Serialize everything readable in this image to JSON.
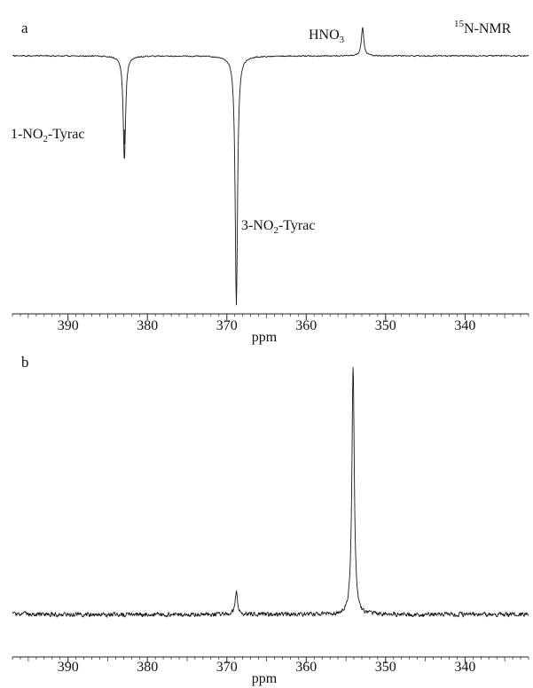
{
  "figure_label": "15N-NMR",
  "figure_label_parts": {
    "sup": "15",
    "main": "N-NMR"
  },
  "chart_data": [
    {
      "panel": "a",
      "type": "line",
      "xlabel": "ppm",
      "ylabel": "",
      "xlim": [
        397,
        332
      ],
      "x_reversed": true,
      "x_ticks": [
        390,
        380,
        370,
        360,
        350,
        340
      ],
      "grid": false,
      "baseline_noise": "low",
      "peaks": [
        {
          "x": 382.9,
          "height": -0.42,
          "label": "1-NO2-Tyrac"
        },
        {
          "x": 368.8,
          "height": -1.0,
          "label": "3-NO2-Tyrac"
        },
        {
          "x": 352.9,
          "height": 0.13,
          "label": "HNO3"
        }
      ],
      "annotations": [
        {
          "name": "label-1-no2-tyrac",
          "parts": [
            "1-NO",
            "2",
            "-Tyrac"
          ],
          "x": 382.9
        },
        {
          "name": "label-3-no2-tyrac",
          "parts": [
            "3-NO",
            "2",
            "-Tyrac"
          ],
          "x": 368.8
        },
        {
          "name": "label-hno3",
          "parts": [
            "HNO",
            "3",
            ""
          ],
          "x": 352.9
        }
      ]
    },
    {
      "panel": "b",
      "type": "line",
      "xlabel": "ppm",
      "ylabel": "",
      "xlim": [
        397,
        332
      ],
      "x_reversed": true,
      "x_ticks": [
        390,
        380,
        370,
        360,
        350,
        340
      ],
      "grid": false,
      "baseline_noise": "high",
      "peaks": [
        {
          "x": 368.8,
          "height": 0.09
        },
        {
          "x": 354.1,
          "height": 1.0
        }
      ],
      "annotations": []
    }
  ]
}
